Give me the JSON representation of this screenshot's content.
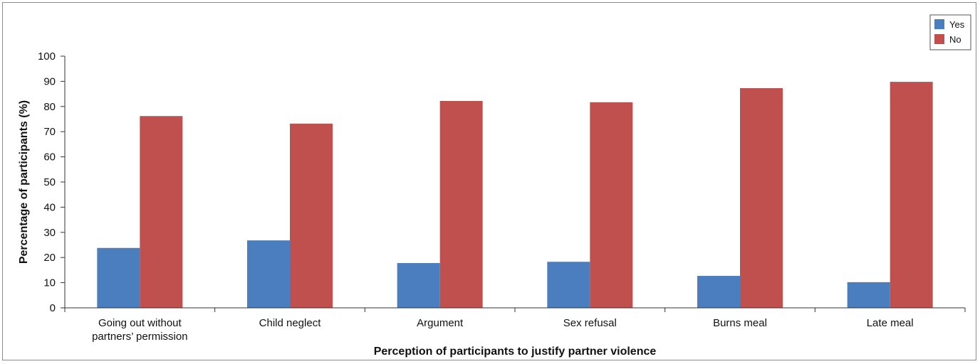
{
  "chart_data": {
    "type": "bar",
    "categories": [
      [
        "Going out without",
        "partners’ permission"
      ],
      [
        "Child neglect"
      ],
      [
        "Argument"
      ],
      [
        "Sex refusal"
      ],
      [
        "Burns meal"
      ],
      [
        "Late meal"
      ]
    ],
    "series": [
      {
        "name": "Yes",
        "color": "#4a7ebf",
        "values": [
          23.8,
          26.8,
          17.8,
          18.3,
          12.7,
          10.2
        ]
      },
      {
        "name": "No",
        "color": "#c0504d",
        "values": [
          76.2,
          73.2,
          82.2,
          81.7,
          87.3,
          89.8
        ]
      }
    ],
    "title": "",
    "xlabel": "Perception of participants to justify partner violence",
    "ylabel": "Percentage of participants (%)",
    "ylim": [
      0,
      100
    ],
    "yticks": [
      0,
      10,
      20,
      30,
      40,
      50,
      60,
      70,
      80,
      90,
      100
    ],
    "grid": false,
    "legend": "top-right"
  }
}
